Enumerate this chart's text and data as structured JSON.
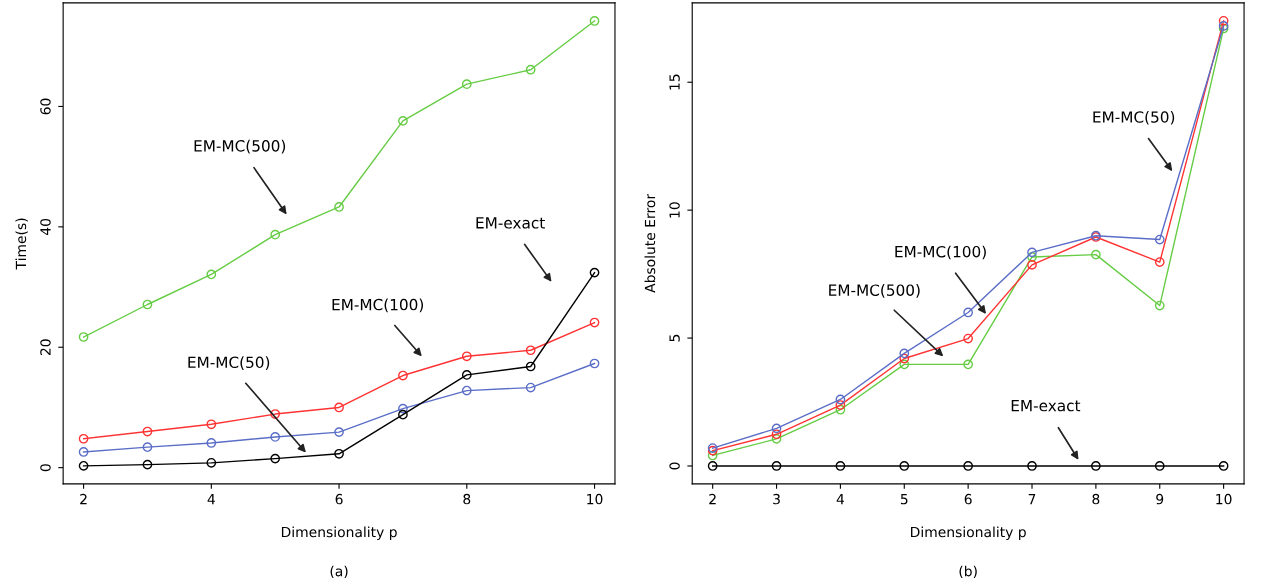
{
  "chart_data": [
    {
      "type": "line",
      "xlabel": "Dimensionality p",
      "ylabel": "Time(s)",
      "x": [
        2,
        3,
        4,
        5,
        6,
        7,
        8,
        9,
        10
      ],
      "xlim": [
        1.68,
        10.32
      ],
      "xticks": [
        2,
        4,
        6,
        8,
        10
      ],
      "ylim": [
        -2.7,
        77.2
      ],
      "yticks": [
        0,
        20,
        40,
        60
      ],
      "marker": "circle",
      "grid": false,
      "series": [
        {
          "color": "#66cc44",
          "values": [
            21.7,
            27.1,
            32.1,
            38.7,
            43.3,
            57.6,
            63.7,
            66.1,
            74.2
          ]
        },
        {
          "color": "#ff3333",
          "values": [
            4.8,
            6.0,
            7.2,
            8.9,
            10.0,
            15.3,
            18.5,
            19.5,
            24.1
          ]
        },
        {
          "color": "#5b6ec7",
          "values": [
            2.6,
            3.4,
            4.1,
            5.1,
            5.9,
            9.8,
            12.8,
            13.3,
            17.3
          ]
        },
        {
          "color": "#000000",
          "values": [
            0.3,
            0.5,
            0.8,
            1.5,
            2.3,
            8.8,
            15.4,
            16.8,
            32.4
          ]
        }
      ],
      "annotations": [
        "EM-MC(500)",
        "EM-exact",
        "EM-MC(100)",
        "EM-MC(50)",
        "(a)"
      ]
    },
    {
      "type": "line",
      "xlabel": "Dimensionality p",
      "ylabel": "Absolute Error",
      "x": [
        2,
        3,
        4,
        5,
        6,
        7,
        8,
        9,
        10
      ],
      "xlim": [
        1.68,
        10.32
      ],
      "xticks": [
        2,
        3,
        4,
        5,
        6,
        7,
        8,
        9,
        10
      ],
      "ylim": [
        -0.7,
        18.1
      ],
      "yticks": [
        0,
        5,
        10,
        15
      ],
      "marker": "circle",
      "grid": false,
      "series": [
        {
          "color": "#66cc44",
          "values": [
            0.41,
            1.06,
            2.2,
            3.97,
            3.97,
            8.17,
            8.26,
            6.27,
            17.1
          ]
        },
        {
          "color": "#ff3333",
          "values": [
            0.6,
            1.24,
            2.38,
            4.2,
            4.98,
            7.86,
            8.95,
            7.97,
            17.4
          ]
        },
        {
          "color": "#5b6ec7",
          "values": [
            0.7,
            1.47,
            2.6,
            4.4,
            6.0,
            8.35,
            9.0,
            8.85,
            17.2
          ]
        },
        {
          "color": "#000000",
          "values": [
            0,
            0,
            0,
            0,
            0,
            0,
            0,
            0,
            0
          ]
        }
      ],
      "annotations": [
        "EM-MC(50)",
        {
          "text": "EM-MC(100)",
          "x": 6.28,
          "y": 5.94
        },
        "EM-MC(500)",
        "EM-exact",
        "(b)"
      ]
    }
  ]
}
